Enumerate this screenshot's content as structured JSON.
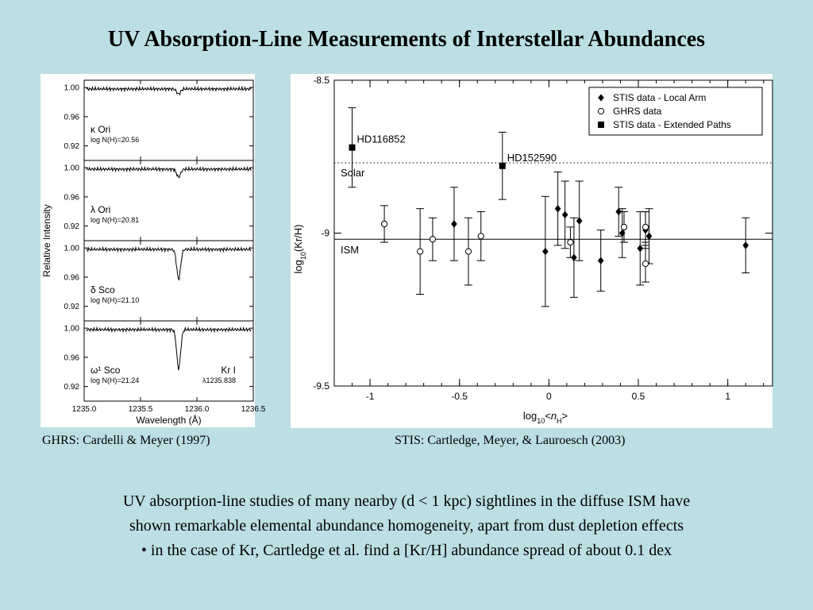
{
  "slide": {
    "title": "UV Absorption-Line Measurements of Interstellar Abundances",
    "caption_left": "GHRS: Cardelli & Meyer (1997)",
    "caption_right": "STIS: Cartledge, Meyer, & Lauroesch (2003)",
    "body_lines": [
      "UV absorption-line studies of many nearby (d < 1 kpc) sightlines in the diffuse ISM have",
      "shown remarkable elemental abundance homogeneity, apart from dust depletion effects",
      "• in the case of Kr, Cartledge et al. find a [Kr/H] abundance spread of about 0.1 dex"
    ]
  },
  "chart_data": [
    {
      "type": "line",
      "ylabel": "Relative Intensity",
      "xlabel": "Wavelength (Å)",
      "xlim": [
        1235.0,
        1236.5
      ],
      "ylim": [
        0.9,
        1.01
      ],
      "xticks": [
        "1235.0",
        "1235.5",
        "1236.0",
        "1236.5"
      ],
      "yticks": [
        "1.00",
        "0.96",
        "0.92"
      ],
      "line_label": "Kr I",
      "line_wavelength": "λ1235.838",
      "series": [
        {
          "star": "κ Ori",
          "column": "log N(H)=20.56",
          "depth": 0.007
        },
        {
          "star": "λ Ori",
          "column": "log N(H)=20.81",
          "depth": 0.011
        },
        {
          "star": "δ Sco",
          "column": "log N(H)=21.10",
          "depth": 0.041
        },
        {
          "star": "ω¹ Sco",
          "column": "log N(H)=21.24",
          "depth": 0.054
        }
      ]
    },
    {
      "type": "scatter",
      "xlabel": "log10<nH>",
      "ylabel": "log10(Kr/H)",
      "xlim": [
        -1.2,
        1.25
      ],
      "ylim": [
        -9.5,
        -8.5
      ],
      "xticks": [
        "-1",
        "-0.5",
        "0",
        "0.5",
        "1"
      ],
      "yticks": [
        "-8.5",
        "-9",
        "-9.5"
      ],
      "reference_lines": [
        {
          "label": "Solar",
          "y": -8.77,
          "style": "dotted"
        },
        {
          "label": "ISM",
          "y": -9.02,
          "style": "solid"
        }
      ],
      "legend": {
        "position": "top-right",
        "entries": [
          "STIS data - Local Arm",
          "GHRS data",
          "STIS data - Extended Paths"
        ]
      },
      "series": [
        {
          "name": "STIS data - Local Arm",
          "marker": "diamond",
          "points": [
            {
              "x": -0.53,
              "y": -8.97,
              "err": 0.12
            },
            {
              "x": -0.02,
              "y": -9.06,
              "err": 0.18
            },
            {
              "x": 0.05,
              "y": -8.92,
              "err": 0.12
            },
            {
              "x": 0.09,
              "y": -8.94,
              "err": 0.11
            },
            {
              "x": 0.14,
              "y": -9.08,
              "err": 0.13
            },
            {
              "x": 0.17,
              "y": -8.96,
              "err": 0.13
            },
            {
              "x": 0.29,
              "y": -9.09,
              "err": 0.1
            },
            {
              "x": 0.39,
              "y": -8.93,
              "err": 0.08
            },
            {
              "x": 0.41,
              "y": -9.0,
              "err": 0.08
            },
            {
              "x": 0.51,
              "y": -9.05,
              "err": 0.12
            },
            {
              "x": 0.54,
              "y": -8.99,
              "err": 0.06
            },
            {
              "x": 0.56,
              "y": -9.01,
              "err": 0.09
            },
            {
              "x": 1.1,
              "y": -9.04,
              "err": 0.09
            }
          ]
        },
        {
          "name": "GHRS data",
          "marker": "circle",
          "points": [
            {
              "x": -0.92,
              "y": -8.97,
              "err": 0.06
            },
            {
              "x": -0.72,
              "y": -9.06,
              "err": 0.14
            },
            {
              "x": -0.65,
              "y": -9.02,
              "err": 0.07
            },
            {
              "x": -0.45,
              "y": -9.06,
              "err": 0.11
            },
            {
              "x": -0.38,
              "y": -9.01,
              "err": 0.08
            },
            {
              "x": 0.12,
              "y": -9.03,
              "err": 0.05
            },
            {
              "x": 0.42,
              "y": -8.98,
              "err": 0.05
            },
            {
              "x": 0.54,
              "y": -8.98,
              "err": 0.05
            },
            {
              "x": 0.54,
              "y": -9.1,
              "err": 0.06
            }
          ]
        },
        {
          "name": "STIS data - Extended Paths",
          "marker": "square",
          "points": [
            {
              "x": -1.1,
              "y": -8.72,
              "err": 0.13,
              "label": "HD116852"
            },
            {
              "x": -0.26,
              "y": -8.78,
              "err": 0.11,
              "label": "HD152590"
            }
          ]
        }
      ]
    }
  ]
}
